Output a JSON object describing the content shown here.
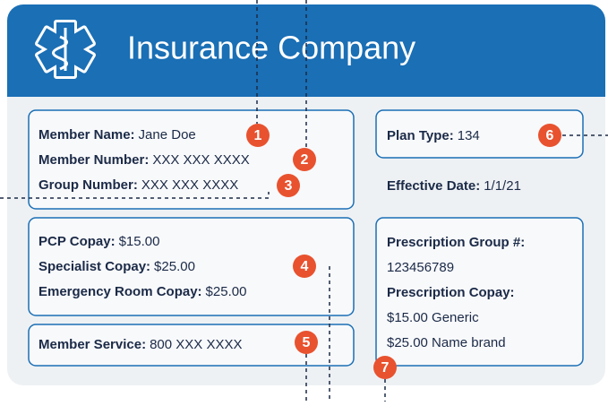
{
  "header": {
    "title": "Insurance Company"
  },
  "member_info": [
    {
      "label": "Member Name:",
      "value": "Jane Doe"
    },
    {
      "label": "Member Number:",
      "value": "XXX XXX XXXX"
    },
    {
      "label": "Group Number:",
      "value": "XXX XXX XXXX"
    }
  ],
  "copays": [
    {
      "label": "PCP Copay:",
      "value": "$15.00"
    },
    {
      "label": "Specialist Copay:",
      "value": "$25.00"
    },
    {
      "label": "Emergency Room Copay:",
      "value": "$25.00"
    }
  ],
  "member_service": {
    "label": "Member Service:",
    "value": "800 XXX XXXX"
  },
  "plan_type": {
    "label": "Plan Type:",
    "value": "134"
  },
  "effective_date": {
    "label": "Effective Date:",
    "value": "1/1/21"
  },
  "prescription": {
    "group_label": "Prescription Group #:",
    "group_value": "123456789",
    "copay_label": "Prescription Copay:",
    "copay_values": [
      "$15.00 Generic",
      "$25.00 Name brand"
    ]
  },
  "callouts": [
    "1",
    "2",
    "3",
    "4",
    "5",
    "6",
    "7"
  ]
}
